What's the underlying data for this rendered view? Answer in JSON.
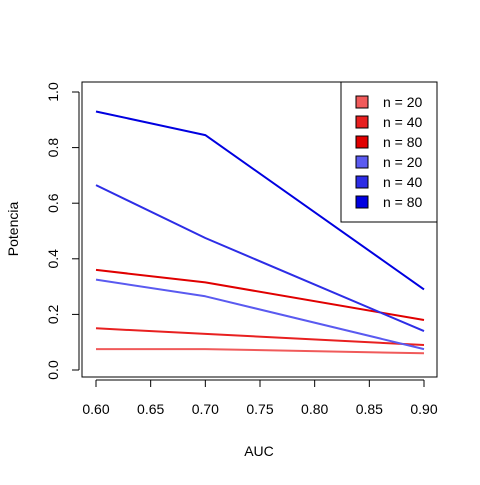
{
  "chart_data": {
    "type": "line",
    "title": "",
    "xlabel": "AUC",
    "ylabel": "Potencia",
    "xlim": [
      0.6,
      0.9
    ],
    "ylim": [
      0.0,
      1.0
    ],
    "x": [
      0.6,
      0.7,
      0.9
    ],
    "x_ticks": [
      "0.60",
      "0.65",
      "0.70",
      "0.75",
      "0.80",
      "0.85",
      "0.90"
    ],
    "x_tick_values": [
      0.6,
      0.65,
      0.7,
      0.75,
      0.8,
      0.85,
      0.9
    ],
    "y_ticks": [
      "0.0",
      "0.2",
      "0.4",
      "0.6",
      "0.8",
      "1.0"
    ],
    "y_tick_values": [
      0.0,
      0.2,
      0.4,
      0.6,
      0.8,
      1.0
    ],
    "grid": false,
    "legend_position": "top-right",
    "series": [
      {
        "name": "n = 20",
        "color": "#f05a5a",
        "values": [
          0.075,
          0.075,
          0.06
        ]
      },
      {
        "name": "n = 40",
        "color": "#e82020",
        "values": [
          0.15,
          0.13,
          0.09
        ]
      },
      {
        "name": "n = 80",
        "color": "#e00000",
        "values": [
          0.36,
          0.315,
          0.18
        ]
      },
      {
        "name": "n = 20",
        "color": "#5a5af0",
        "values": [
          0.325,
          0.265,
          0.075
        ]
      },
      {
        "name": "n = 40",
        "color": "#2d2de6",
        "values": [
          0.665,
          0.475,
          0.14
        ]
      },
      {
        "name": "n = 80",
        "color": "#0000e0",
        "values": [
          0.93,
          0.845,
          0.29
        ]
      }
    ]
  }
}
